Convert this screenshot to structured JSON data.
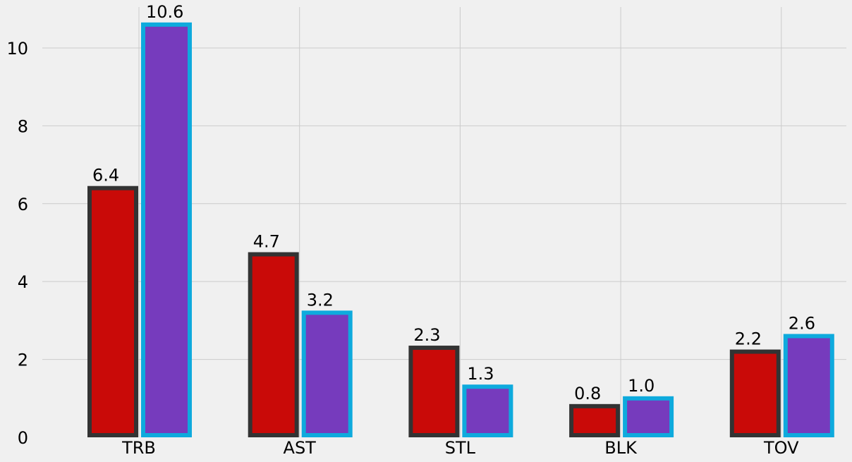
{
  "chart_data": {
    "type": "bar",
    "categories": [
      "TRB",
      "AST",
      "STL",
      "BLK",
      "TOV"
    ],
    "series": [
      {
        "values": [
          6.4,
          4.7,
          2.3,
          0.8,
          2.2
        ],
        "fill": "#c90a08",
        "edge": "#333333"
      },
      {
        "values": [
          10.6,
          3.2,
          1.3,
          1.0,
          2.6
        ],
        "fill": "#763bbd",
        "edge": "#0eaadd"
      }
    ],
    "data_labels": [
      [
        "6.4",
        "4.7",
        "2.3",
        "0.8",
        "2.2"
      ],
      [
        "10.6",
        "3.2",
        "1.3",
        "1.0",
        "2.6"
      ]
    ],
    "y_ticks": [
      "0",
      "2",
      "4",
      "6",
      "8",
      "10"
    ],
    "ylim": [
      0,
      11.05
    ],
    "grid": true,
    "legend": "none",
    "title": "",
    "xlabel": "",
    "ylabel": ""
  }
}
